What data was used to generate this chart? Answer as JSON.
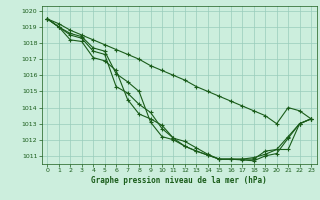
{
  "title": "Graphe pression niveau de la mer (hPa)",
  "background_color": "#cceedd",
  "grid_color": "#99ccbb",
  "line_color": "#1a5c1a",
  "xlim": [
    -0.5,
    23.5
  ],
  "ylim": [
    1010.5,
    1020.3
  ],
  "yticks": [
    1011,
    1012,
    1013,
    1014,
    1015,
    1016,
    1017,
    1018,
    1019,
    1020
  ],
  "xticks": [
    0,
    1,
    2,
    3,
    4,
    5,
    6,
    7,
    8,
    9,
    10,
    11,
    12,
    13,
    14,
    15,
    16,
    17,
    18,
    19,
    20,
    21,
    22,
    23
  ],
  "lines": [
    [
      1019.5,
      1019.0,
      1018.2,
      1018.1,
      1017.1,
      1016.9,
      1016.3,
      1014.5,
      1013.6,
      1013.3,
      1012.9,
      1012.1,
      1011.9,
      1011.5,
      1011.1,
      1010.8,
      1010.8,
      1010.75,
      1010.7,
      1011.0,
      1011.15,
      1012.1,
      1013.0,
      1013.3
    ],
    [
      1019.5,
      1019.0,
      1018.5,
      1018.3,
      1017.5,
      1017.3,
      1015.3,
      1014.9,
      1014.2,
      1013.7,
      1012.7,
      1012.1,
      1011.6,
      1011.3,
      1011.05,
      1010.8,
      1010.8,
      1010.8,
      1010.8,
      1011.3,
      1011.4,
      1012.2,
      1013.0,
      1013.3
    ],
    [
      1019.5,
      1019.0,
      1018.6,
      1018.4,
      1017.7,
      1017.5,
      1016.1,
      1015.6,
      1015.0,
      1013.1,
      1012.2,
      1012.0,
      1011.6,
      1011.3,
      1011.05,
      1010.8,
      1010.8,
      1010.8,
      1010.9,
      1011.1,
      1011.4,
      1011.4,
      1013.0,
      1013.3
    ],
    [
      1019.5,
      1019.2,
      1018.8,
      1018.5,
      1018.2,
      1017.9,
      1017.6,
      1017.3,
      1017.0,
      1016.6,
      1016.3,
      1016.0,
      1015.7,
      1015.3,
      1015.0,
      1014.7,
      1014.4,
      1014.1,
      1013.8,
      1013.5,
      1013.0,
      1014.0,
      1013.8,
      1013.3
    ]
  ]
}
